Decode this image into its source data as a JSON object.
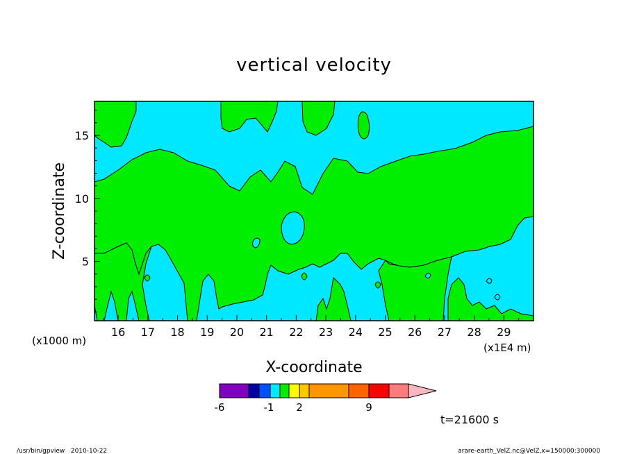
{
  "chart_data": {
    "type": "heatmap",
    "title": "vertical velocity",
    "xlabel": "X-coordinate",
    "ylabel": "Z-coordinate",
    "x_unit_left": "(x1000 m)",
    "x_unit_right": "(x1E4 m)",
    "xlim": [
      15.2,
      30.0
    ],
    "ylim": [
      0.3,
      17.7
    ],
    "x_ticks": [
      "16",
      "17",
      "18",
      "19",
      "20",
      "21",
      "22",
      "23",
      "24",
      "25",
      "26",
      "27",
      "28",
      "29"
    ],
    "y_ticks": [
      "5",
      "10",
      "15"
    ],
    "grid": false,
    "colorbar": {
      "labels": [
        "-6",
        "-1",
        "2",
        "9"
      ],
      "colors": [
        "#7f00bf",
        "#0000a0",
        "#0050ff",
        "#00e8ff",
        "#00ee00",
        "#ffff00",
        "#ffc800",
        "#ff9600",
        "#ff6400",
        "#ff0000",
        "#ff7a7a",
        "#ffb6c1"
      ]
    },
    "fill_colors": {
      "negative": "#00e8ff",
      "positive": "#00ee00"
    },
    "time_label": "t=21600 s"
  },
  "footer": {
    "left": "/usr/bin/gpview   2010-10-22",
    "right": "arare-earth_VelZ.nc@VelZ,x=150000:300000"
  }
}
